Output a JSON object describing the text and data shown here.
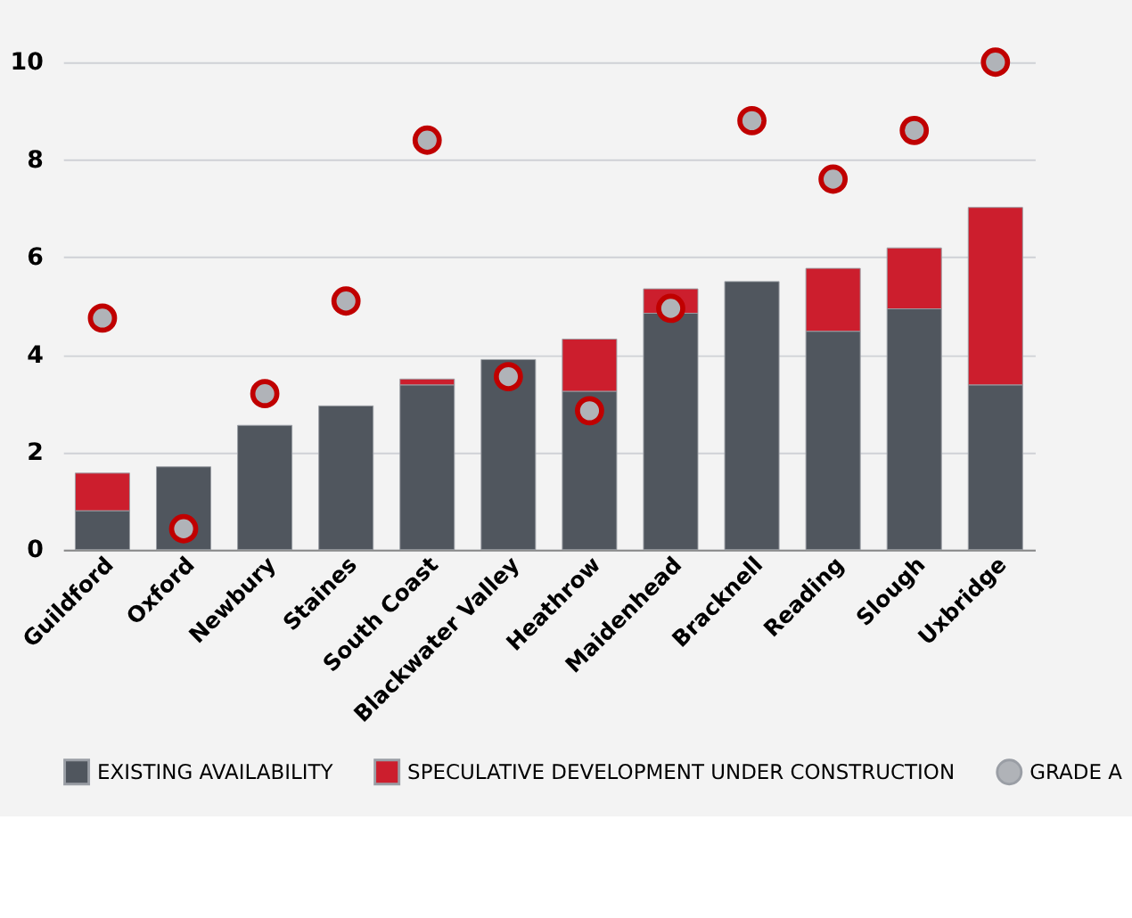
{
  "chart_data": {
    "type": "bar",
    "stacked": true,
    "categories": [
      "Guildford",
      "Oxford",
      "Newbury",
      "Staines",
      "South Coast",
      "Blackwater Valley",
      "Heathrow",
      "Maidenhead",
      "Bracknell",
      "Reading",
      "Slough",
      "Uxbridge"
    ],
    "series": [
      {
        "name": "EXISTING AVAILABILITY",
        "color": "#50565e",
        "values": [
          0.8,
          1.7,
          2.55,
          2.95,
          3.38,
          3.9,
          3.25,
          4.85,
          5.5,
          4.48,
          4.94,
          3.38
        ]
      },
      {
        "name": "SPECULATIVE DEVELOPMENT UNDER CONSTRUCTION",
        "color": "#cc1e2d",
        "values": [
          0.77,
          null,
          null,
          null,
          0.12,
          null,
          1.07,
          0.5,
          null,
          1.29,
          1.25,
          3.64
        ]
      },
      {
        "name": "GRADE A",
        "type": "scatter",
        "color": "#b0b3b8",
        "values": [
          4.75,
          0.43,
          3.2,
          5.1,
          8.4,
          3.55,
          2.85,
          4.95,
          8.8,
          7.6,
          8.6,
          10.0
        ]
      }
    ],
    "ylim": [
      0,
      10
    ],
    "yticks": [
      0,
      2,
      4,
      6,
      8,
      10
    ],
    "grid": "y",
    "legend": "bottom",
    "marker": "circle"
  }
}
